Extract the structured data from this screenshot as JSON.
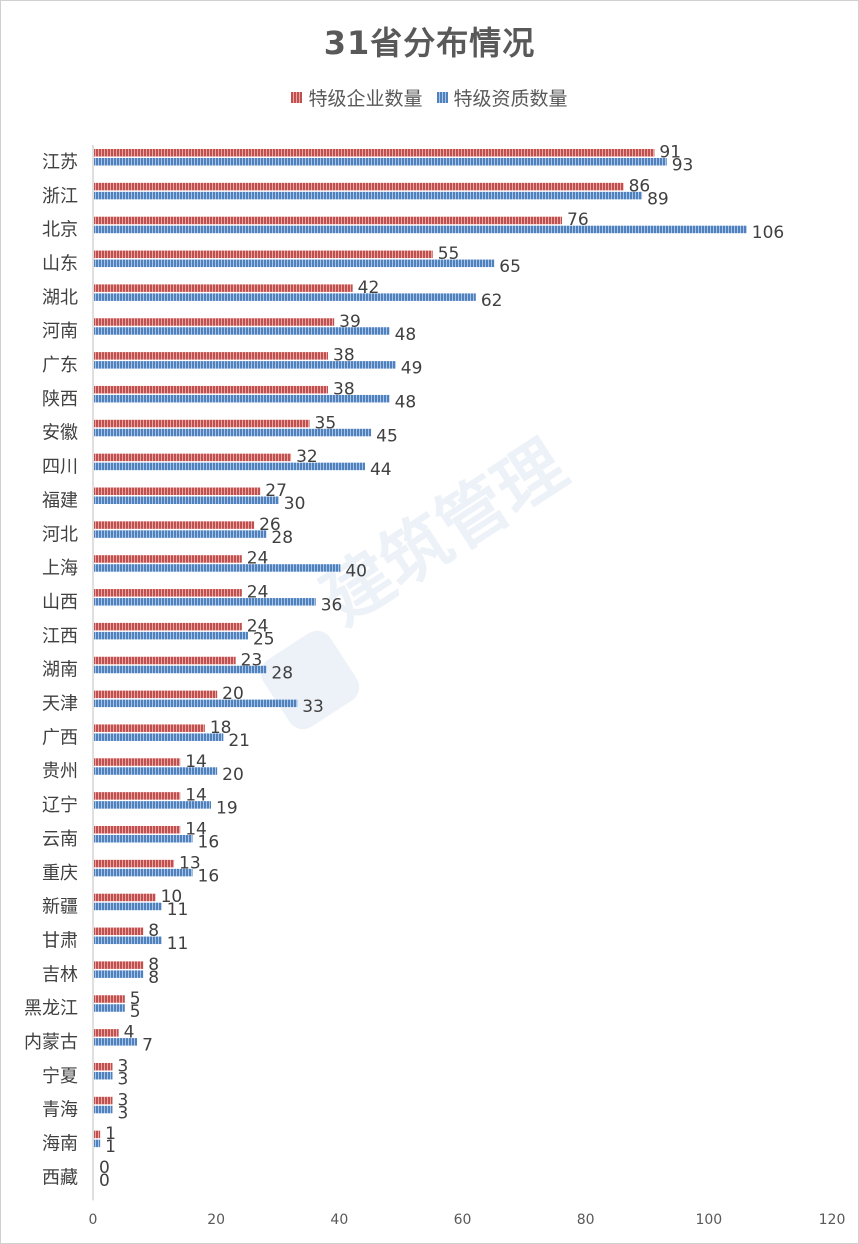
{
  "chart_data": {
    "type": "bar",
    "orientation": "horizontal",
    "title": "31省分布情况",
    "categories": [
      "江苏",
      "浙江",
      "北京",
      "山东",
      "湖北",
      "河南",
      "广东",
      "陕西",
      "安徽",
      "四川",
      "福建",
      "河北",
      "上海",
      "山西",
      "江西",
      "湖南",
      "天津",
      "广西",
      "贵州",
      "辽宁",
      "云南",
      "重庆",
      "新疆",
      "甘肃",
      "吉林",
      "黑龙江",
      "内蒙古",
      "宁夏",
      "青海",
      "海南",
      "西藏"
    ],
    "series": [
      {
        "name": "特级企业数量",
        "color": "#c0504d",
        "values": [
          91,
          86,
          76,
          55,
          42,
          39,
          38,
          38,
          35,
          32,
          27,
          26,
          24,
          24,
          24,
          23,
          20,
          18,
          14,
          14,
          14,
          13,
          10,
          8,
          8,
          5,
          4,
          3,
          3,
          1,
          0
        ]
      },
      {
        "name": "特级资质数量",
        "color": "#4f81bd",
        "values": [
          93,
          89,
          106,
          65,
          62,
          48,
          49,
          48,
          45,
          44,
          30,
          28,
          40,
          36,
          25,
          28,
          33,
          21,
          20,
          19,
          16,
          16,
          11,
          11,
          8,
          5,
          7,
          3,
          3,
          1,
          0
        ]
      }
    ],
    "xlim": [
      0,
      120
    ],
    "xticks": [
      0,
      20,
      40,
      60,
      80,
      100,
      120
    ],
    "grid": false,
    "legend_position": "top"
  },
  "watermark": "建筑管理"
}
